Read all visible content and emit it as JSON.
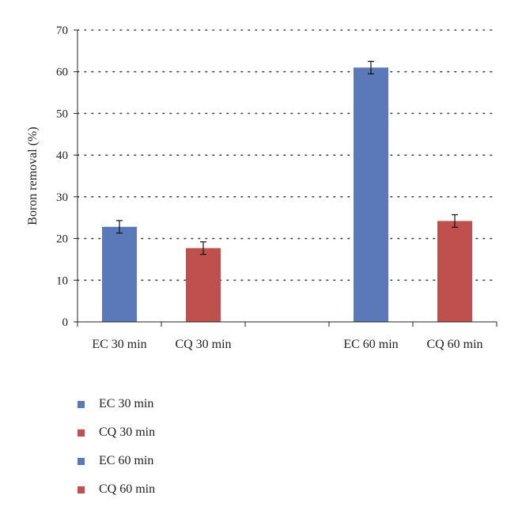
{
  "chart_data": {
    "type": "bar",
    "title": "",
    "xlabel": "",
    "ylabel": "Boron removal (%)",
    "ylim": [
      0,
      70
    ],
    "yticks": [
      0,
      10,
      20,
      30,
      40,
      50,
      60,
      70
    ],
    "grid": "dotted horizontal",
    "legend_position": "bottom-left",
    "categories": [
      "EC 30 min",
      "CQ 30 min",
      "",
      "EC 60 min",
      "CQ 60 min"
    ],
    "bars": [
      {
        "category": "EC 30 min",
        "value": 22.8,
        "error": 1.5,
        "color": "#5b78b8"
      },
      {
        "category": "CQ 30 min",
        "value": 17.7,
        "error": 1.5,
        "color": "#c0504d"
      },
      {
        "category": "EC 60 min",
        "value": 61.0,
        "error": 1.5,
        "color": "#5b78b8"
      },
      {
        "category": "CQ 60 min",
        "value": 24.2,
        "error": 1.5,
        "color": "#c0504d"
      }
    ],
    "legend": [
      {
        "label": "EC 30 min",
        "color": "#5b78b8"
      },
      {
        "label": "CQ 30 min",
        "color": "#c0504d"
      },
      {
        "label": "EC 60 min",
        "color": "#5b78b8"
      },
      {
        "label": "CQ 60 min",
        "color": "#c0504d"
      }
    ]
  }
}
